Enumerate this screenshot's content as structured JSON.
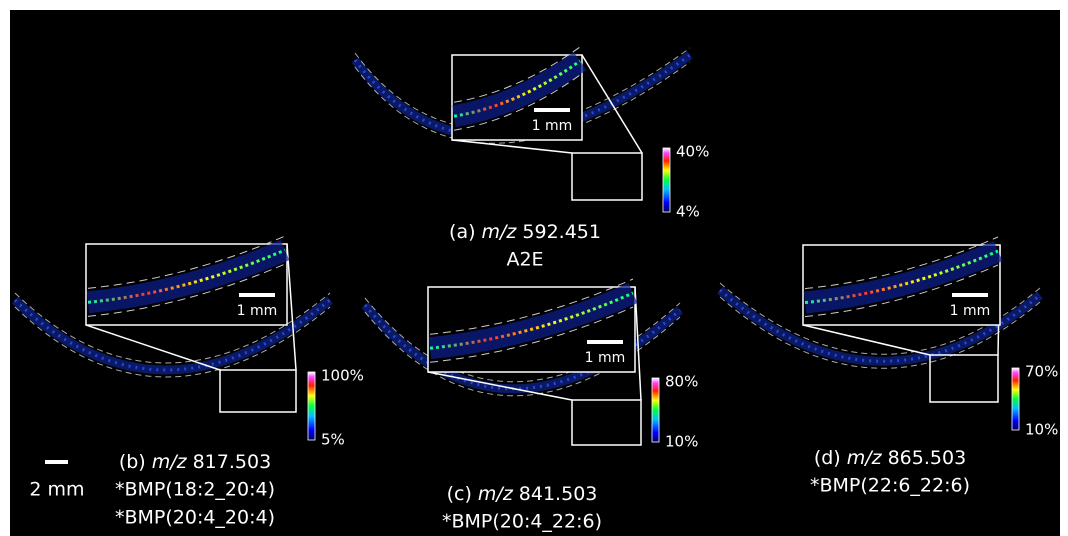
{
  "panels": [
    {
      "label": "(a)",
      "mz_prefix": "m/z",
      "mz": "592.451",
      "compounds": [
        "A2E"
      ],
      "colorbar": {
        "max": "40%",
        "min": "4%"
      },
      "inset_scale": "1 mm"
    },
    {
      "label": "(b)",
      "mz_prefix": "m/z",
      "mz": "817.503",
      "compounds": [
        "*BMP(18:2_20:4)",
        "*BMP(20:4_20:4)"
      ],
      "colorbar": {
        "max": "100%",
        "min": "5%"
      },
      "inset_scale": "1 mm"
    },
    {
      "label": "(c)",
      "mz_prefix": "m/z",
      "mz": "841.503",
      "compounds": [
        "*BMP(20:4_22:6)"
      ],
      "colorbar": {
        "max": "80%",
        "min": "10%"
      },
      "inset_scale": "1 mm"
    },
    {
      "label": "(d)",
      "mz_prefix": "m/z",
      "mz": "865.503",
      "compounds": [
        "*BMP(22:6_22:6)"
      ],
      "colorbar": {
        "max": "70%",
        "min": "10%"
      },
      "inset_scale": "1 mm"
    }
  ],
  "scale_bar": "2 mm"
}
